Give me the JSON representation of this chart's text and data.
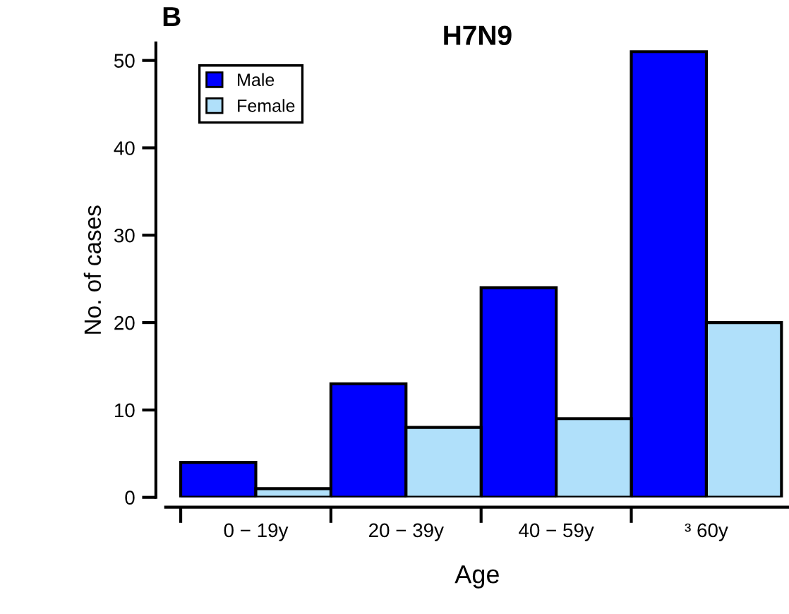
{
  "chart_data": {
    "type": "bar",
    "title": "H7N9",
    "xlabel": "Age",
    "ylabel": "No. of cases",
    "annotations": [
      "B"
    ],
    "categories": [
      "0 − 19y",
      "20 − 39y",
      "40 − 59y",
      "³ 60y"
    ],
    "series": [
      {
        "name": "Male",
        "color": "#0000ff",
        "values": [
          4,
          13,
          24,
          51
        ]
      },
      {
        "name": "Female",
        "color": "#b0e0fa",
        "values": [
          1,
          8,
          9,
          20
        ]
      }
    ],
    "ylim": [
      0,
      52
    ],
    "yticks": [
      0,
      10,
      20,
      30,
      40,
      50
    ],
    "grid": false,
    "legend": "top left"
  }
}
